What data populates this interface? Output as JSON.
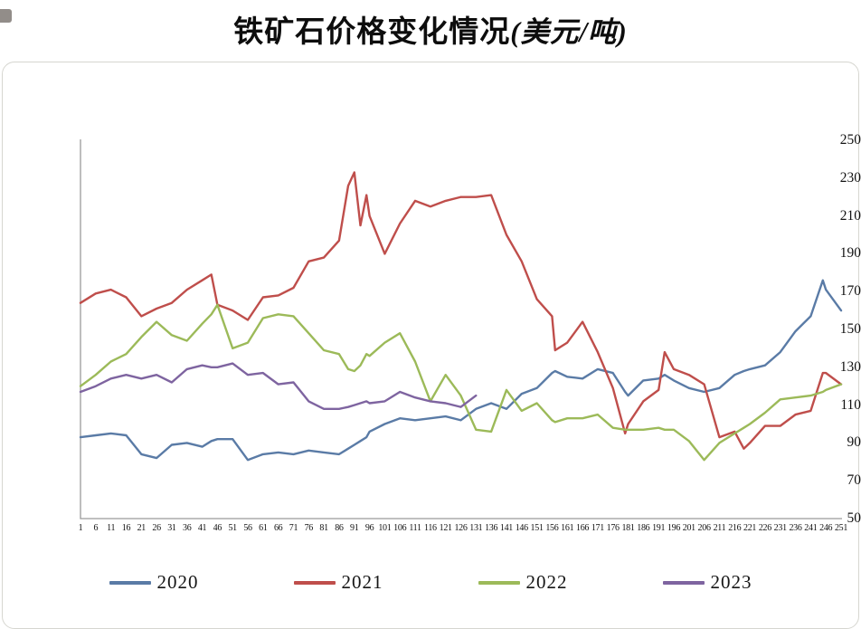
{
  "title": {
    "main": "铁矿石价格变化情况",
    "unit": "(美元/吨)"
  },
  "chart_data": {
    "type": "line",
    "title": "铁矿石价格变化情况(美元/吨)",
    "xlabel": "",
    "ylabel": "",
    "xlim": [
      1,
      251
    ],
    "ylim": [
      50,
      250
    ],
    "grid": false,
    "legend_position": "bottom",
    "y_ticks": [
      250,
      230,
      210,
      190,
      170,
      150,
      130,
      110,
      90,
      70,
      50
    ],
    "x_label_ticks": [
      1,
      6,
      11,
      16,
      21,
      26,
      31,
      36,
      41,
      46,
      51,
      56,
      61,
      66,
      71,
      76,
      81,
      86,
      91,
      96,
      101,
      106,
      111,
      116,
      121,
      126,
      131,
      136,
      141,
      146,
      151,
      156,
      161,
      166,
      171,
      176,
      181,
      186,
      191,
      196,
      201,
      206,
      211,
      216,
      221,
      226,
      231,
      236,
      241,
      246,
      251
    ],
    "x": [
      1,
      6,
      11,
      16,
      21,
      26,
      31,
      36,
      41,
      44,
      46,
      51,
      56,
      61,
      66,
      71,
      76,
      81,
      86,
      89,
      91,
      93,
      95,
      96,
      101,
      106,
      111,
      116,
      121,
      126,
      131,
      136,
      141,
      146,
      151,
      156,
      157,
      161,
      166,
      171,
      176,
      180,
      181,
      186,
      191,
      193,
      196,
      201,
      206,
      211,
      216,
      219,
      221,
      226,
      231,
      236,
      241,
      245,
      246,
      251
    ],
    "series": [
      {
        "name": "2020",
        "color": "#5a7ba6",
        "values": [
          93,
          94,
          95,
          94,
          84,
          82,
          89,
          90,
          88,
          91,
          92,
          92,
          81,
          84,
          85,
          84,
          86,
          85,
          84,
          87,
          89,
          91,
          93,
          96,
          100,
          103,
          102,
          103,
          104,
          102,
          108,
          111,
          108,
          116,
          119,
          127,
          128,
          125,
          124,
          129,
          127,
          117,
          115,
          123,
          124,
          126,
          123,
          119,
          117,
          119,
          126,
          128,
          129,
          131,
          138,
          149,
          157,
          176,
          171,
          160
        ]
      },
      {
        "name": "2021",
        "color": "#bf4e4b",
        "values": [
          164,
          169,
          171,
          167,
          157,
          161,
          164,
          171,
          176,
          179,
          163,
          160,
          155,
          167,
          168,
          172,
          186,
          188,
          197,
          226,
          233,
          205,
          221,
          210,
          190,
          206,
          218,
          215,
          218,
          220,
          220,
          221,
          200,
          186,
          166,
          157,
          139,
          143,
          154,
          138,
          119,
          95,
          100,
          112,
          118,
          138,
          129,
          126,
          121,
          93,
          96,
          87,
          90,
          99,
          99,
          105,
          107,
          127,
          127,
          121
        ]
      },
      {
        "name": "2022",
        "color": "#9cba59",
        "values": [
          120,
          126,
          133,
          137,
          146,
          154,
          147,
          144,
          153,
          158,
          163,
          140,
          143,
          156,
          158,
          157,
          148,
          139,
          137,
          129,
          128,
          131,
          137,
          136,
          143,
          148,
          133,
          112,
          126,
          115,
          97,
          96,
          118,
          107,
          111,
          102,
          101,
          103,
          103,
          105,
          98,
          97,
          97,
          97,
          98,
          97,
          97,
          91,
          81,
          90,
          95,
          98,
          100,
          106,
          113,
          114,
          115,
          117,
          118,
          121
        ]
      },
      {
        "name": "2023",
        "color": "#7e64a0",
        "values": [
          117,
          120,
          124,
          126,
          124,
          126,
          122,
          129,
          131,
          130,
          130,
          132,
          126,
          127,
          121,
          122,
          112,
          108,
          108,
          109,
          110,
          111,
          112,
          111,
          112,
          117,
          114,
          112,
          111,
          109,
          115,
          null,
          null,
          null,
          null,
          null,
          null,
          null,
          null,
          null,
          null,
          null,
          null,
          null,
          null,
          null,
          null,
          null,
          null,
          null,
          null,
          null,
          null,
          null,
          null,
          null,
          null,
          null,
          null,
          null
        ]
      }
    ]
  }
}
